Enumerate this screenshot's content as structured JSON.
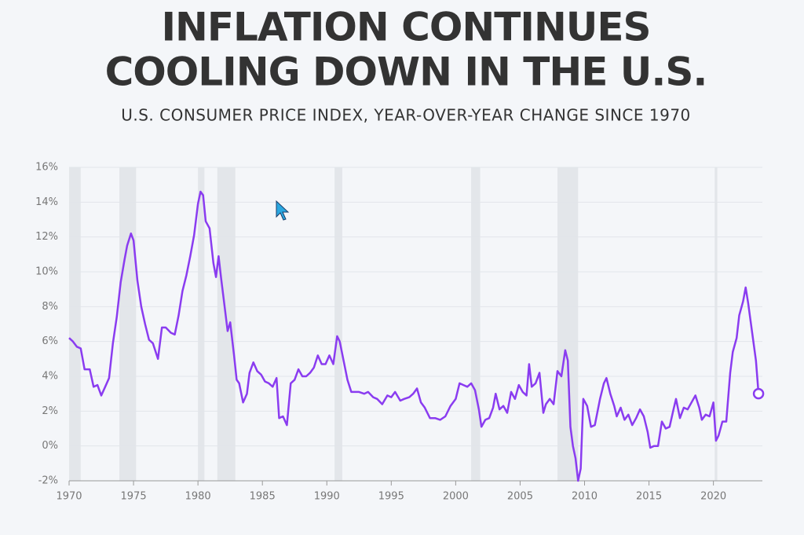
{
  "chart_data": {
    "type": "line",
    "title": [
      "INFLATION CONTINUES",
      "COOLING DOWN IN THE U.S."
    ],
    "subtitle": "U.S. CONSUMER PRICE INDEX, YEAR-OVER-YEAR CHANGE SINCE 1970",
    "xlim": [
      1970,
      2023.8
    ],
    "xticks": [
      1970,
      1975,
      1980,
      1985,
      1990,
      1995,
      2000,
      2005,
      2010,
      2015,
      2020
    ],
    "ylim": [
      -2,
      16
    ],
    "yticks": [
      {
        "value": -2,
        "label": "-2%"
      },
      {
        "value": 0,
        "label": "0%"
      },
      {
        "value": 2,
        "label": "2%"
      },
      {
        "value": 4,
        "label": "4%"
      },
      {
        "value": 6,
        "label": "6%"
      },
      {
        "value": 8,
        "label": "8%"
      },
      {
        "value": 10,
        "label": "10%"
      },
      {
        "value": 12,
        "label": "12%"
      },
      {
        "value": 14,
        "label": "14%"
      },
      {
        "value": 16,
        "label": "16%"
      }
    ],
    "grid": true,
    "recessions": [
      [
        1970,
        1970.9
      ],
      [
        1973.9,
        1975.2
      ],
      [
        1980,
        1980.5
      ],
      [
        1981.5,
        1982.9
      ],
      [
        1990.6,
        1991.2
      ],
      [
        2001.2,
        2001.9
      ],
      [
        2007.9,
        2009.5
      ],
      [
        2020.1,
        2020.3
      ]
    ],
    "recession_color": "#e3e6ea",
    "series": [
      {
        "color": "#8a3cf0",
        "x": [
          1970.0,
          1970.3,
          1970.6,
          1970.9,
          1971.2,
          1971.6,
          1971.9,
          1972.2,
          1972.5,
          1972.8,
          1973.1,
          1973.4,
          1973.7,
          1974.0,
          1974.3,
          1974.5,
          1974.8,
          1975.0,
          1975.3,
          1975.6,
          1975.9,
          1976.2,
          1976.5,
          1976.9,
          1977.2,
          1977.5,
          1977.9,
          1978.2,
          1978.5,
          1978.8,
          1979.1,
          1979.4,
          1979.7,
          1980.0,
          1980.2,
          1980.4,
          1980.6,
          1980.9,
          1981.2,
          1981.4,
          1981.6,
          1981.8,
          1982.0,
          1982.3,
          1982.5,
          1982.8,
          1983.0,
          1983.2,
          1983.5,
          1983.8,
          1984.0,
          1984.3,
          1984.6,
          1984.9,
          1985.2,
          1985.5,
          1985.8,
          1986.1,
          1986.3,
          1986.6,
          1986.9,
          1987.2,
          1987.5,
          1987.8,
          1988.1,
          1988.4,
          1988.7,
          1989.0,
          1989.3,
          1989.6,
          1989.9,
          1990.2,
          1990.5,
          1990.8,
          1991.0,
          1991.3,
          1991.6,
          1991.9,
          1992.2,
          1992.5,
          1992.9,
          1993.2,
          1993.6,
          1993.9,
          1994.3,
          1994.7,
          1995.0,
          1995.3,
          1995.7,
          1996.0,
          1996.4,
          1996.7,
          1997.0,
          1997.3,
          1997.6,
          1998.0,
          1998.4,
          1998.8,
          1999.2,
          1999.6,
          2000.0,
          2000.3,
          2000.6,
          2000.9,
          2001.2,
          2001.5,
          2001.8,
          2002.0,
          2002.3,
          2002.6,
          2002.9,
          2003.1,
          2003.4,
          2003.7,
          2004.0,
          2004.3,
          2004.6,
          2004.9,
          2005.2,
          2005.5,
          2005.7,
          2005.9,
          2006.2,
          2006.5,
          2006.8,
          2007.0,
          2007.3,
          2007.6,
          2007.9,
          2008.2,
          2008.5,
          2008.7,
          2008.9,
          2009.1,
          2009.3,
          2009.5,
          2009.7,
          2009.9,
          2010.2,
          2010.5,
          2010.8,
          2011.2,
          2011.5,
          2011.7,
          2012.0,
          2012.3,
          2012.5,
          2012.8,
          2013.1,
          2013.4,
          2013.7,
          2014.0,
          2014.3,
          2014.6,
          2014.9,
          2015.1,
          2015.4,
          2015.7,
          2016.0,
          2016.3,
          2016.6,
          2016.9,
          2017.1,
          2017.4,
          2017.7,
          2018.0,
          2018.3,
          2018.6,
          2018.9,
          2019.1,
          2019.4,
          2019.7,
          2020.0,
          2020.2,
          2020.4,
          2020.7,
          2021.0,
          2021.3,
          2021.5,
          2021.8,
          2022.0,
          2022.3,
          2022.5,
          2022.7,
          2022.9,
          2023.1,
          2023.3,
          2023.5
        ],
        "values": [
          6.2,
          6.0,
          5.7,
          5.6,
          4.4,
          4.4,
          3.4,
          3.5,
          2.9,
          3.4,
          3.9,
          5.9,
          7.4,
          9.4,
          10.7,
          11.5,
          12.2,
          11.8,
          9.5,
          8.0,
          7.0,
          6.1,
          5.9,
          5.0,
          6.8,
          6.8,
          6.5,
          6.4,
          7.5,
          8.9,
          9.8,
          10.9,
          12.1,
          13.9,
          14.6,
          14.4,
          12.9,
          12.5,
          10.5,
          9.7,
          10.9,
          9.6,
          8.4,
          6.6,
          7.1,
          5.2,
          3.8,
          3.6,
          2.5,
          3.0,
          4.2,
          4.8,
          4.3,
          4.1,
          3.7,
          3.6,
          3.4,
          3.9,
          1.6,
          1.7,
          1.2,
          3.6,
          3.8,
          4.4,
          4.0,
          4.0,
          4.2,
          4.5,
          5.2,
          4.7,
          4.7,
          5.2,
          4.7,
          6.3,
          6.0,
          4.9,
          3.8,
          3.1,
          3.1,
          3.1,
          3.0,
          3.1,
          2.8,
          2.7,
          2.4,
          2.9,
          2.8,
          3.1,
          2.6,
          2.7,
          2.8,
          3.0,
          3.3,
          2.5,
          2.2,
          1.6,
          1.6,
          1.5,
          1.7,
          2.3,
          2.7,
          3.6,
          3.5,
          3.4,
          3.6,
          3.2,
          2.1,
          1.1,
          1.5,
          1.6,
          2.2,
          3.0,
          2.1,
          2.3,
          1.9,
          3.1,
          2.7,
          3.5,
          3.1,
          2.9,
          4.7,
          3.4,
          3.6,
          4.2,
          1.9,
          2.4,
          2.7,
          2.4,
          4.3,
          4.0,
          5.5,
          4.9,
          1.1,
          0.0,
          -0.7,
          -2.0,
          -1.3,
          2.7,
          2.3,
          1.1,
          1.2,
          2.7,
          3.6,
          3.9,
          3.0,
          2.3,
          1.7,
          2.2,
          1.5,
          1.8,
          1.2,
          1.6,
          2.1,
          1.7,
          0.8,
          -0.1,
          0.0,
          0.0,
          1.4,
          1.0,
          1.1,
          2.1,
          2.7,
          1.6,
          2.2,
          2.1,
          2.5,
          2.9,
          2.2,
          1.5,
          1.8,
          1.7,
          2.5,
          0.3,
          0.6,
          1.4,
          1.4,
          4.2,
          5.4,
          6.2,
          7.5,
          8.3,
          9.1,
          8.2,
          7.1,
          6.0,
          4.9,
          3.0
        ]
      }
    ]
  }
}
